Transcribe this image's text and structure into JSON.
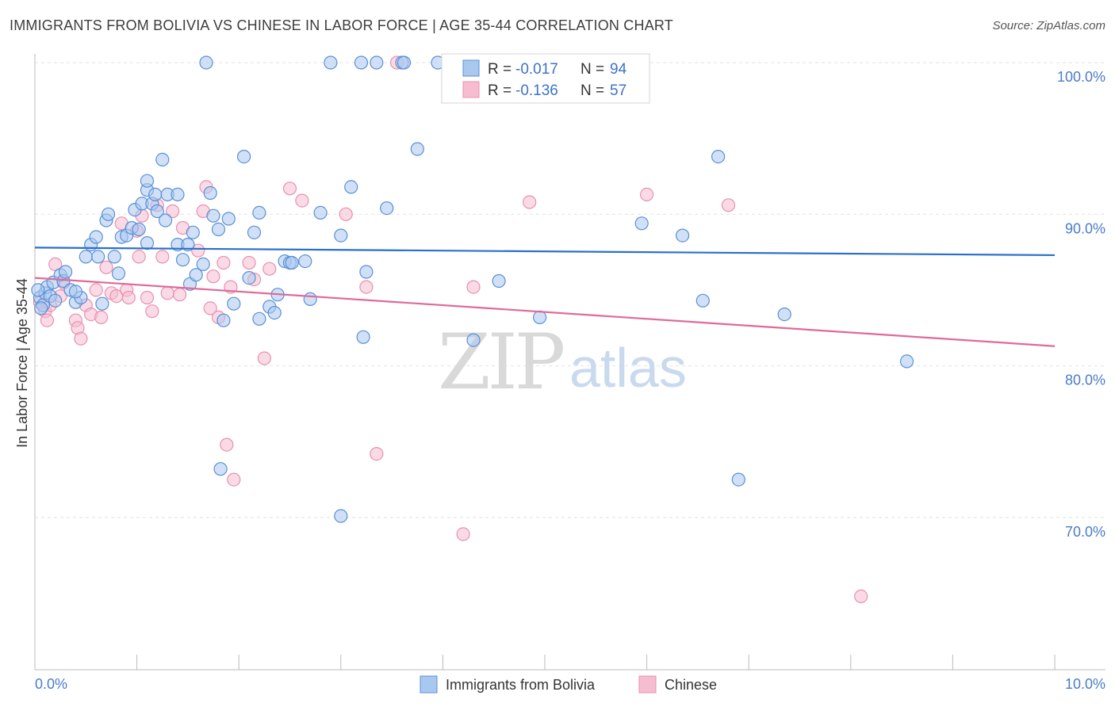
{
  "header": {
    "title": "IMMIGRANTS FROM BOLIVIA VS CHINESE IN LABOR FORCE | AGE 35-44 CORRELATION CHART",
    "source": "Source: ZipAtlas.com"
  },
  "watermark": {
    "zip": "ZIP",
    "atlas": "atlas"
  },
  "legend_top": {
    "rows": [
      {
        "r_label": "R = ",
        "r_value": "-0.017",
        "n_label": "N = ",
        "n_value": "94"
      },
      {
        "r_label": "R = ",
        "r_value": "-0.136",
        "n_label": "N = ",
        "n_value": "57"
      }
    ]
  },
  "colors": {
    "bolivia_fill": "#a9c8f0",
    "bolivia_stroke": "#5b8fd6",
    "bolivia_line": "#2a6fcc",
    "chinese_fill": "#f6bdd0",
    "chinese_stroke": "#e890b0",
    "chinese_line": "#e0699a",
    "tick_text": "#4a7cc7",
    "grid": "#e2e2e2"
  },
  "chart_data": {
    "type": "scatter",
    "title": "IMMIGRANTS FROM BOLIVIA VS CHINESE IN LABOR FORCE | AGE 35-44 CORRELATION CHART",
    "xlabel": "",
    "ylabel": "In Labor Force | Age 35-44",
    "xlim": [
      0,
      10
    ],
    "ylim": [
      61,
      102.5
    ],
    "x_tick_labels": [
      "0.0%",
      "10.0%"
    ],
    "y_ticks": [
      70,
      80,
      90,
      100
    ],
    "y_tick_labels": [
      "70.0%",
      "80.0%",
      "90.0%",
      "100.0%"
    ],
    "grid": true,
    "legend_placement": "bottom-center",
    "series": [
      {
        "name": "Immigrants from Bolivia",
        "R": -0.017,
        "N": 94,
        "trend": {
          "x": [
            0,
            10
          ],
          "y": [
            87.8,
            87.3
          ]
        },
        "points": [
          [
            0.05,
            84.5
          ],
          [
            0.08,
            84.0
          ],
          [
            0.1,
            84.8
          ],
          [
            0.12,
            85.2
          ],
          [
            0.15,
            84.6
          ],
          [
            0.18,
            85.5
          ],
          [
            0.2,
            84.3
          ],
          [
            0.25,
            86.0
          ],
          [
            0.28,
            85.6
          ],
          [
            0.3,
            86.2
          ],
          [
            0.35,
            85.0
          ],
          [
            0.4,
            84.2
          ],
          [
            0.45,
            84.5
          ],
          [
            0.5,
            87.2
          ],
          [
            0.55,
            88.0
          ],
          [
            0.6,
            88.5
          ],
          [
            0.62,
            87.2
          ],
          [
            0.7,
            89.6
          ],
          [
            0.72,
            90.0
          ],
          [
            0.78,
            87.2
          ],
          [
            0.82,
            86.1
          ],
          [
            0.85,
            88.5
          ],
          [
            0.9,
            88.6
          ],
          [
            0.95,
            89.1
          ],
          [
            0.98,
            90.3
          ],
          [
            1.02,
            89.0
          ],
          [
            1.05,
            90.7
          ],
          [
            1.1,
            88.1
          ],
          [
            1.1,
            91.6
          ],
          [
            1.1,
            92.2
          ],
          [
            1.15,
            90.7
          ],
          [
            1.18,
            91.3
          ],
          [
            1.2,
            90.2
          ],
          [
            1.25,
            93.6
          ],
          [
            1.28,
            89.6
          ],
          [
            1.3,
            91.3
          ],
          [
            1.4,
            91.3
          ],
          [
            1.4,
            88.0
          ],
          [
            1.45,
            87.0
          ],
          [
            1.5,
            88.0
          ],
          [
            1.52,
            85.4
          ],
          [
            1.55,
            88.8
          ],
          [
            1.58,
            86.0
          ],
          [
            1.65,
            86.7
          ],
          [
            1.68,
            100.0
          ],
          [
            1.72,
            91.4
          ],
          [
            1.75,
            89.9
          ],
          [
            1.8,
            89.0
          ],
          [
            1.82,
            73.2
          ],
          [
            1.85,
            83.0
          ],
          [
            1.9,
            89.7
          ],
          [
            1.95,
            84.1
          ],
          [
            2.05,
            93.8
          ],
          [
            2.1,
            85.8
          ],
          [
            2.15,
            88.8
          ],
          [
            2.2,
            83.1
          ],
          [
            2.2,
            90.1
          ],
          [
            2.3,
            83.9
          ],
          [
            2.35,
            83.5
          ],
          [
            2.38,
            84.7
          ],
          [
            2.45,
            86.9
          ],
          [
            2.5,
            86.8
          ],
          [
            2.52,
            86.8
          ],
          [
            2.65,
            86.9
          ],
          [
            2.7,
            84.4
          ],
          [
            2.8,
            90.1
          ],
          [
            2.9,
            100.0
          ],
          [
            3.0,
            70.1
          ],
          [
            3.0,
            88.6
          ],
          [
            3.1,
            91.8
          ],
          [
            3.2,
            100.0
          ],
          [
            3.22,
            81.9
          ],
          [
            3.25,
            86.2
          ],
          [
            3.35,
            100.0
          ],
          [
            3.45,
            90.4
          ],
          [
            3.6,
            100.0
          ],
          [
            3.62,
            100.0
          ],
          [
            3.75,
            94.3
          ],
          [
            3.95,
            100.0
          ],
          [
            4.3,
            81.7
          ],
          [
            4.55,
            85.6
          ],
          [
            4.95,
            83.2
          ],
          [
            5.25,
            100.0
          ],
          [
            5.95,
            89.4
          ],
          [
            6.35,
            88.6
          ],
          [
            6.55,
            84.3
          ],
          [
            6.7,
            93.8
          ],
          [
            6.9,
            72.5
          ],
          [
            7.35,
            83.4
          ],
          [
            8.55,
            80.3
          ],
          [
            0.03,
            85.0
          ],
          [
            0.06,
            83.8
          ],
          [
            0.4,
            84.9
          ],
          [
            0.66,
            84.1
          ]
        ]
      },
      {
        "name": "Chinese",
        "R": -0.136,
        "N": 57,
        "trend": {
          "x": [
            0,
            10
          ],
          "y": [
            85.8,
            81.3
          ]
        },
        "points": [
          [
            0.05,
            84.2
          ],
          [
            0.1,
            83.6
          ],
          [
            0.12,
            83.0
          ],
          [
            0.15,
            84.0
          ],
          [
            0.2,
            86.7
          ],
          [
            0.25,
            84.6
          ],
          [
            0.28,
            85.5
          ],
          [
            0.4,
            83.0
          ],
          [
            0.42,
            82.5
          ],
          [
            0.45,
            81.8
          ],
          [
            0.5,
            84.0
          ],
          [
            0.55,
            83.4
          ],
          [
            0.6,
            85.0
          ],
          [
            0.65,
            83.2
          ],
          [
            0.7,
            86.5
          ],
          [
            0.75,
            84.8
          ],
          [
            0.8,
            84.6
          ],
          [
            0.85,
            89.4
          ],
          [
            0.9,
            85.0
          ],
          [
            0.92,
            84.5
          ],
          [
            1.0,
            88.9
          ],
          [
            1.02,
            87.2
          ],
          [
            1.05,
            89.9
          ],
          [
            1.1,
            84.5
          ],
          [
            1.15,
            83.6
          ],
          [
            1.2,
            90.6
          ],
          [
            1.25,
            87.2
          ],
          [
            1.3,
            84.8
          ],
          [
            1.35,
            90.2
          ],
          [
            1.42,
            84.7
          ],
          [
            1.45,
            89.1
          ],
          [
            1.6,
            87.6
          ],
          [
            1.65,
            90.2
          ],
          [
            1.68,
            91.8
          ],
          [
            1.72,
            83.8
          ],
          [
            1.75,
            85.9
          ],
          [
            1.8,
            83.2
          ],
          [
            1.85,
            86.8
          ],
          [
            1.88,
            74.8
          ],
          [
            1.92,
            85.2
          ],
          [
            1.95,
            72.5
          ],
          [
            2.1,
            86.8
          ],
          [
            2.15,
            85.7
          ],
          [
            2.25,
            80.5
          ],
          [
            2.3,
            86.4
          ],
          [
            2.5,
            91.7
          ],
          [
            2.62,
            90.9
          ],
          [
            3.05,
            90.0
          ],
          [
            3.25,
            85.2
          ],
          [
            3.35,
            74.2
          ],
          [
            3.55,
            100.0
          ],
          [
            4.2,
            68.9
          ],
          [
            4.3,
            85.2
          ],
          [
            4.85,
            90.8
          ],
          [
            6.0,
            91.3
          ],
          [
            6.8,
            90.6
          ],
          [
            8.1,
            64.8
          ]
        ]
      }
    ]
  },
  "bottom_legend": {
    "items": [
      {
        "label": "Immigrants from Bolivia"
      },
      {
        "label": "Chinese"
      }
    ]
  }
}
